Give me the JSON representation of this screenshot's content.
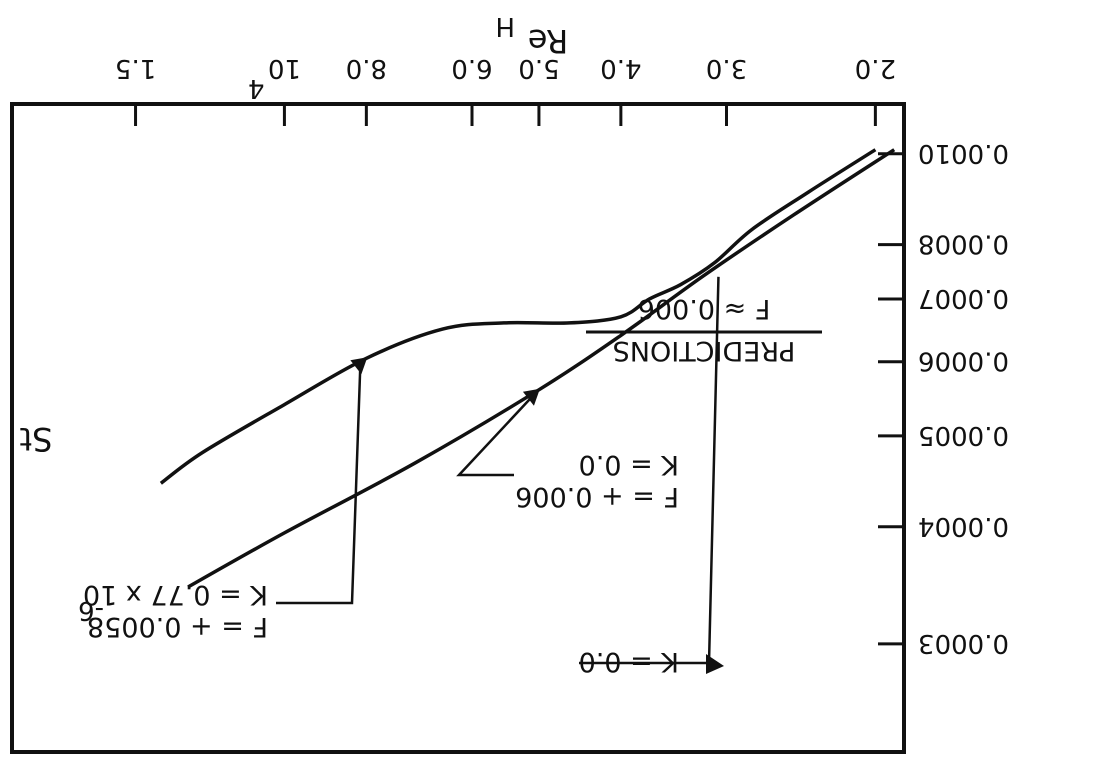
{
  "chart_data": {
    "type": "line",
    "orientation": "rotated-180",
    "log_scale": {
      "x": true,
      "y": true
    },
    "xlabel": "Re",
    "xlabel_subscript": "H",
    "ylabel": "St",
    "x_ticks": [
      {
        "value": 20000,
        "label": "2.0"
      },
      {
        "value": 30000,
        "label": "3.0"
      },
      {
        "value": 40000,
        "label": "4.0"
      },
      {
        "value": 50000,
        "label": "5.0"
      },
      {
        "value": 60000,
        "label": "6.0"
      },
      {
        "value": 80000,
        "label": "8.0"
      },
      {
        "value": 100000,
        "label": "10",
        "exponent": "4"
      },
      {
        "value": 150000,
        "label": "1.5"
      }
    ],
    "y_ticks": [
      {
        "value": 0.0003,
        "label": "0.0003"
      },
      {
        "value": 0.0004,
        "label": "0.0004"
      },
      {
        "value": 0.0005,
        "label": "0.0005"
      },
      {
        "value": 0.0006,
        "label": "0.0006"
      },
      {
        "value": 0.0007,
        "label": "0.0007"
      },
      {
        "value": 0.0008,
        "label": "0.0008"
      },
      {
        "value": 0.001,
        "label": "0.0010"
      }
    ],
    "xlim": [
      18500,
      210000
    ],
    "ylim": [
      0.00023,
      0.00113
    ],
    "series": [
      {
        "name": "F = + 0.006 K = 0.0",
        "x": [
          19000,
          25000,
          32000,
          40000,
          50000,
          70000,
          100000,
          130000
        ],
        "y": [
          0.00101,
          0.00086,
          0.00074,
          0.00064,
          0.00056,
          0.000468,
          0.000394,
          0.000345
        ]
      },
      {
        "name": "F = + 0.0058 K = 0.77 x 10-6",
        "x": [
          20000,
          24000,
          28000,
          31000,
          34000,
          37000,
          40000,
          46000,
          55000,
          65000,
          80000,
          100000,
          125000,
          140000
        ],
        "y": [
          0.00101,
          0.00091,
          0.00083,
          0.000765,
          0.000725,
          0.0007,
          0.00067,
          0.00066,
          0.00066,
          0.00065,
          0.000605,
          0.00054,
          0.00048,
          0.000445
        ]
      }
    ],
    "title": "PREDICTIONS",
    "subtitle": "F ≈ 0.006",
    "annotations": [
      {
        "line1": "F = + 0.006",
        "line2": "K = 0.0"
      },
      {
        "line1": "F = + 0.0058",
        "line2": "K = 0.77 x 10",
        "exponent": "-6"
      },
      {
        "line1": "K = 0.0"
      }
    ]
  }
}
